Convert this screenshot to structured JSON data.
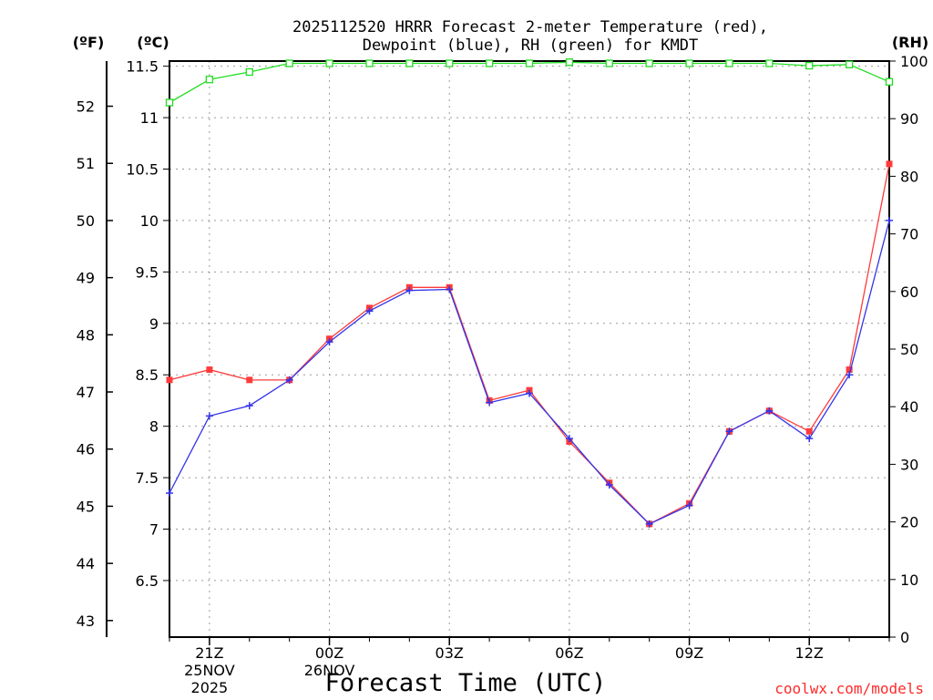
{
  "chart_data": {
    "type": "line",
    "title": [
      "2025112520 HRRR Forecast 2-meter Temperature (red),",
      "Dewpoint (blue), RH (green) for KMDT"
    ],
    "xlabel": "Forecast Time (UTC)",
    "credit": "coolwx.com/models",
    "units": {
      "fahrenheit": "(ºF)",
      "celsius": "(ºC)",
      "rh": "(RH)"
    },
    "hours": [
      0,
      1,
      2,
      3,
      4,
      5,
      6,
      7,
      8,
      9,
      10,
      11,
      12,
      13,
      14,
      15,
      16,
      17,
      18
    ],
    "x_ticks": [
      {
        "hour": 1,
        "lines": [
          "21Z",
          "25NOV",
          "2025"
        ]
      },
      {
        "hour": 4,
        "lines": [
          "00Z",
          "26NOV"
        ]
      },
      {
        "hour": 7,
        "lines": [
          "03Z"
        ]
      },
      {
        "hour": 10,
        "lines": [
          "06Z"
        ]
      },
      {
        "hour": 13,
        "lines": [
          "09Z"
        ]
      },
      {
        "hour": 16,
        "lines": [
          "12Z"
        ]
      }
    ],
    "celsius_axis": {
      "range": [
        5.95,
        11.55
      ],
      "ticks": [
        "6.5",
        "7",
        "7.5",
        "8",
        "8.5",
        "9",
        "9.5",
        "10",
        "10.5",
        "11",
        "11.5"
      ]
    },
    "fahrenheit_axis": {
      "ticks": [
        "43",
        "44",
        "45",
        "46",
        "47",
        "48",
        "49",
        "50",
        "51",
        "52"
      ]
    },
    "rh_axis": {
      "range": [
        0,
        100
      ],
      "ticks": [
        "0",
        "10",
        "20",
        "30",
        "40",
        "50",
        "60",
        "70",
        "80",
        "90",
        "100"
      ]
    },
    "series": [
      {
        "name": "Temperature",
        "unit": "C",
        "color": "#ff3b3b",
        "marker": "square-filled",
        "values": [
          8.45,
          8.55,
          8.45,
          8.45,
          8.85,
          9.15,
          9.35,
          9.35,
          8.25,
          8.35,
          7.85,
          7.45,
          7.05,
          7.25,
          7.95,
          8.15,
          7.95,
          8.55,
          10.55
        ]
      },
      {
        "name": "Dewpoint",
        "unit": "C",
        "color": "#3434e8",
        "marker": "plus",
        "values": [
          7.35,
          8.1,
          8.2,
          8.45,
          8.82,
          9.12,
          9.32,
          9.33,
          8.23,
          8.32,
          7.88,
          7.43,
          7.05,
          7.23,
          7.95,
          8.15,
          7.88,
          8.5,
          10.0
        ]
      },
      {
        "name": "RH",
        "unit": "%",
        "color": "#22dd22",
        "marker": "square-open",
        "values": [
          92.8,
          96.8,
          98.1,
          99.6,
          99.6,
          99.6,
          99.6,
          99.6,
          99.6,
          99.6,
          99.8,
          99.6,
          99.6,
          99.6,
          99.6,
          99.6,
          99.2,
          99.4,
          96.4
        ]
      }
    ]
  }
}
